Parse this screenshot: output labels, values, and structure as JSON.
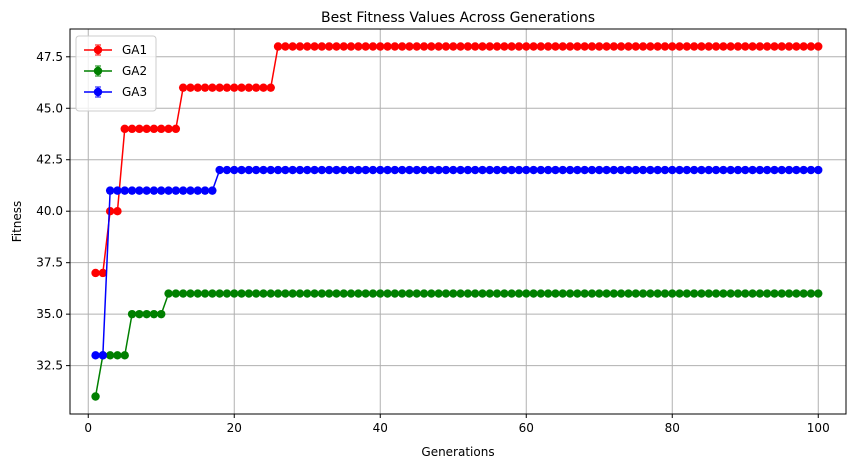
{
  "chart_data": {
    "type": "line",
    "title": "Best Fitness Values Across Generations",
    "xlabel": "Generations",
    "ylabel": "Fitness",
    "xlim": [
      -2.5,
      103.8
    ],
    "ylim": [
      30.15,
      48.85
    ],
    "xticks": [
      0,
      20,
      40,
      60,
      80,
      100
    ],
    "xtick_labels": [
      "0",
      "20",
      "40",
      "60",
      "80",
      "100"
    ],
    "yticks": [
      32.5,
      35.0,
      37.5,
      40.0,
      42.5,
      45.0,
      47.5
    ],
    "ytick_labels": [
      "32.5",
      "35.0",
      "37.5",
      "40.0",
      "42.5",
      "45.0",
      "47.5"
    ],
    "grid": true,
    "legend_position": "top-left",
    "marker": "circle",
    "error_bars": true,
    "x": {
      "start": 1,
      "end": 100,
      "step": 1
    },
    "series": [
      {
        "name": "GA1",
        "color": "#ff0000",
        "steps": [
          {
            "from": 1,
            "value": 37
          },
          {
            "from": 3,
            "value": 40
          },
          {
            "from": 5,
            "value": 44
          },
          {
            "from": 13,
            "value": 46
          },
          {
            "from": 26,
            "value": 48
          }
        ]
      },
      {
        "name": "GA2",
        "color": "#008000",
        "steps": [
          {
            "from": 1,
            "value": 31
          },
          {
            "from": 2,
            "value": 33
          },
          {
            "from": 6,
            "value": 35
          },
          {
            "from": 11,
            "value": 36
          }
        ]
      },
      {
        "name": "GA3",
        "color": "#0000ff",
        "steps": [
          {
            "from": 1,
            "value": 33
          },
          {
            "from": 3,
            "value": 41
          },
          {
            "from": 18,
            "value": 42
          }
        ]
      }
    ]
  }
}
